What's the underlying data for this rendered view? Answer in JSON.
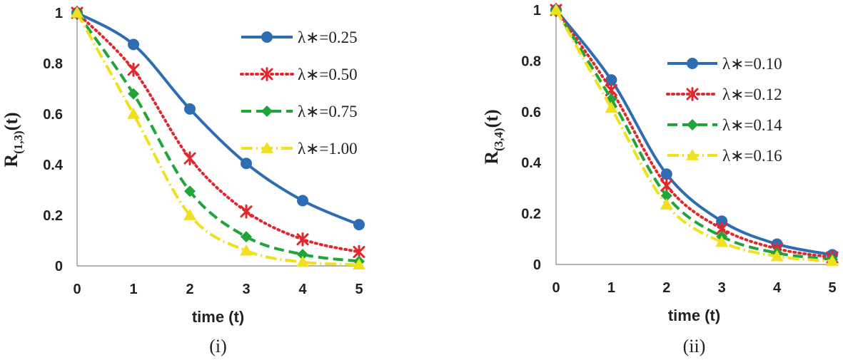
{
  "chart_data": [
    {
      "type": "line",
      "panel_label": "(i)",
      "xlabel": "time (t)",
      "ylabel": {
        "main": "R",
        "sub": "(1,3)",
        "suffix": "(t)"
      },
      "x": [
        0,
        1,
        2,
        3,
        4,
        5
      ],
      "xlim": [
        0,
        5
      ],
      "ylim": [
        0,
        1
      ],
      "xticks": [
        "0",
        "1",
        "2",
        "3",
        "4",
        "5"
      ],
      "yticks": [
        "0",
        "0.2",
        "0.4",
        "0.6",
        "0.8",
        "1"
      ],
      "grid": false,
      "legend_position": "top-right",
      "series": [
        {
          "name": "λ∗=0.25",
          "color": "#2e6db4",
          "dash": "solid",
          "marker": "circle",
          "values": [
            1.0,
            0.875,
            0.62,
            0.405,
            0.258,
            0.163
          ]
        },
        {
          "name": "λ∗=0.50",
          "color": "#e0282e",
          "dash": "dotted",
          "marker": "asterisk",
          "values": [
            1.0,
            0.775,
            0.425,
            0.215,
            0.105,
            0.055
          ]
        },
        {
          "name": "λ∗=0.75",
          "color": "#1fa53a",
          "dash": "longdash",
          "marker": "diamond",
          "values": [
            1.0,
            0.68,
            0.295,
            0.115,
            0.045,
            0.018
          ]
        },
        {
          "name": "λ∗=1.00",
          "color": "#f0e020",
          "dash": "dashdot",
          "marker": "triangle",
          "values": [
            1.0,
            0.6,
            0.2,
            0.06,
            0.015,
            0.005
          ]
        }
      ]
    },
    {
      "type": "line",
      "panel_label": "(ii)",
      "xlabel": "time (t)",
      "ylabel": {
        "main": "R",
        "sub": "(3,4)",
        "suffix": "(t)"
      },
      "x": [
        0,
        1,
        2,
        3,
        4,
        5
      ],
      "xlim": [
        0,
        5
      ],
      "ylim": [
        0,
        1
      ],
      "xticks": [
        "0",
        "1",
        "2",
        "3",
        "4",
        "5"
      ],
      "yticks": [
        "0",
        "0.2",
        "0.4",
        "0.6",
        "0.8",
        "1"
      ],
      "grid": false,
      "legend_position": "top-right",
      "series": [
        {
          "name": "λ∗=0.10",
          "color": "#2e6db4",
          "dash": "solid",
          "marker": "circle",
          "values": [
            1.0,
            0.725,
            0.355,
            0.17,
            0.08,
            0.038
          ]
        },
        {
          "name": "λ∗=0.12",
          "color": "#e0282e",
          "dash": "dotted",
          "marker": "asterisk",
          "values": [
            1.0,
            0.685,
            0.31,
            0.14,
            0.062,
            0.028
          ]
        },
        {
          "name": "λ∗=0.14",
          "color": "#1fa53a",
          "dash": "longdash",
          "marker": "diamond",
          "values": [
            1.0,
            0.65,
            0.27,
            0.11,
            0.045,
            0.02
          ]
        },
        {
          "name": "λ∗=0.16",
          "color": "#f0e020",
          "dash": "dashdot",
          "marker": "triangle",
          "values": [
            1.0,
            0.615,
            0.235,
            0.088,
            0.032,
            0.013
          ]
        }
      ]
    }
  ]
}
